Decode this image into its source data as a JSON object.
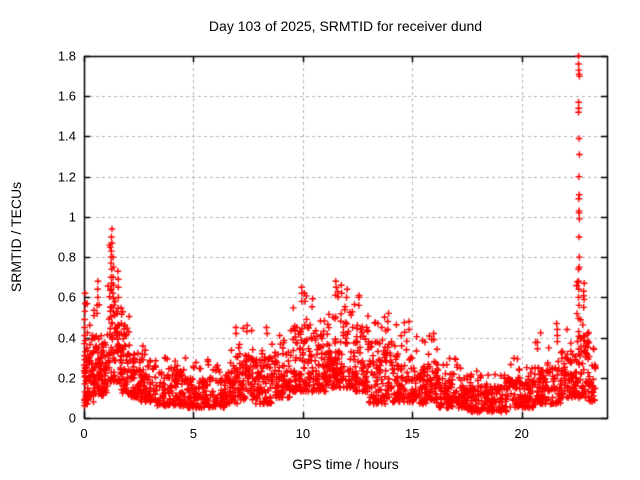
{
  "chart_data": {
    "type": "scatter",
    "title": "Day 103 of 2025, SRMTID for receiver dund",
    "xlabel": "GPS time / hours",
    "ylabel": "SRMTID / TECUs",
    "xlim": [
      0,
      23.9
    ],
    "ylim": [
      0,
      1.8
    ],
    "xticks": [
      {
        "v": 0,
        "label": "0"
      },
      {
        "v": 5,
        "label": "5"
      },
      {
        "v": 10,
        "label": "10"
      },
      {
        "v": 15,
        "label": "15"
      },
      {
        "v": 20,
        "label": "20"
      }
    ],
    "yticks": [
      {
        "v": 0.0,
        "label": "0"
      },
      {
        "v": 0.2,
        "label": "0.2"
      },
      {
        "v": 0.4,
        "label": "0.4"
      },
      {
        "v": 0.6,
        "label": "0.6"
      },
      {
        "v": 0.8,
        "label": "0.8"
      },
      {
        "v": 1.0,
        "label": "1"
      },
      {
        "v": 1.2,
        "label": "1.2"
      },
      {
        "v": 1.4,
        "label": "1.4"
      },
      {
        "v": 1.6,
        "label": "1.6"
      },
      {
        "v": 1.8,
        "label": "1.8"
      }
    ],
    "grid": true,
    "legend": "none",
    "marker": "plus",
    "marker_color": "#ff0000",
    "grid_color": "#b4b4b4",
    "axis_color": "#000000",
    "background": "#ffffff",
    "bands_format": [
      "x_start_hours",
      "x_end_hours",
      "n_points",
      "y_low",
      "y_high",
      "y_peak"
    ],
    "cloud_bands": [
      [
        0.0,
        0.15,
        30,
        0.06,
        0.35,
        0.57
      ],
      [
        0.15,
        0.45,
        40,
        0.08,
        0.38,
        0.55
      ],
      [
        0.45,
        0.8,
        55,
        0.12,
        0.45,
        0.68
      ],
      [
        0.8,
        1.1,
        40,
        0.1,
        0.4,
        0.52
      ],
      [
        1.1,
        1.5,
        60,
        0.18,
        0.6,
        0.88
      ],
      [
        1.5,
        1.7,
        28,
        0.15,
        0.55,
        0.73
      ],
      [
        1.7,
        2.1,
        55,
        0.12,
        0.45,
        0.58
      ],
      [
        2.1,
        2.5,
        45,
        0.1,
        0.3,
        0.42
      ],
      [
        2.5,
        3.3,
        85,
        0.08,
        0.26,
        0.37
      ],
      [
        3.3,
        4.6,
        120,
        0.06,
        0.24,
        0.32
      ],
      [
        4.6,
        6.5,
        170,
        0.05,
        0.2,
        0.3
      ],
      [
        6.5,
        7.1,
        60,
        0.07,
        0.26,
        0.38
      ],
      [
        7.1,
        7.8,
        70,
        0.09,
        0.32,
        0.46
      ],
      [
        7.8,
        8.6,
        80,
        0.07,
        0.32,
        0.46
      ],
      [
        8.6,
        9.4,
        80,
        0.1,
        0.3,
        0.42
      ],
      [
        9.4,
        10.3,
        95,
        0.13,
        0.45,
        0.66
      ],
      [
        10.3,
        11.1,
        85,
        0.13,
        0.42,
        0.6
      ],
      [
        11.1,
        12.3,
        130,
        0.15,
        0.5,
        0.67
      ],
      [
        12.3,
        13.0,
        75,
        0.13,
        0.45,
        0.62
      ],
      [
        13.0,
        14.1,
        110,
        0.07,
        0.38,
        0.54
      ],
      [
        14.1,
        15.1,
        100,
        0.08,
        0.32,
        0.48
      ],
      [
        15.1,
        16.2,
        105,
        0.07,
        0.28,
        0.42
      ],
      [
        16.2,
        17.4,
        115,
        0.05,
        0.2,
        0.3
      ],
      [
        17.4,
        19.3,
        175,
        0.03,
        0.16,
        0.24
      ],
      [
        19.3,
        20.6,
        120,
        0.05,
        0.2,
        0.31
      ],
      [
        20.6,
        21.8,
        110,
        0.07,
        0.26,
        0.45
      ],
      [
        21.8,
        22.5,
        70,
        0.1,
        0.35,
        0.52
      ],
      [
        22.5,
        23.1,
        75,
        0.1,
        0.45,
        0.68
      ],
      [
        23.1,
        23.4,
        24,
        0.08,
        0.28,
        0.36
      ]
    ],
    "spike_columns": [
      {
        "x": 0.04,
        "ys": [
          0.62,
          0.57,
          0.53,
          0.49,
          0.45,
          0.41,
          0.37,
          0.33,
          0.29,
          0.25,
          0.21,
          0.17,
          0.13
        ]
      },
      {
        "x": 0.62,
        "ys": [
          0.68,
          0.64,
          0.6,
          0.56,
          0.52
        ]
      },
      {
        "x": 1.26,
        "ys": [
          0.94,
          0.9,
          0.87,
          0.83,
          0.8,
          0.77,
          0.74,
          0.7,
          0.67,
          0.64
        ]
      },
      {
        "x": 1.33,
        "ys": [
          0.8,
          0.75,
          0.7,
          0.66,
          0.62
        ]
      },
      {
        "x": 1.56,
        "ys": [
          0.73,
          0.69,
          0.65,
          0.6
        ]
      },
      {
        "x": 6.93,
        "ys": [
          0.45,
          0.42
        ]
      },
      {
        "x": 7.45,
        "ys": [
          0.46,
          0.43
        ]
      },
      {
        "x": 8.35,
        "ys": [
          0.45,
          0.42
        ]
      },
      {
        "x": 9.95,
        "ys": [
          0.65,
          0.62,
          0.58
        ]
      },
      {
        "x": 10.08,
        "ys": [
          0.62,
          0.58
        ]
      },
      {
        "x": 11.5,
        "ys": [
          0.68,
          0.65,
          0.61
        ]
      },
      {
        "x": 11.78,
        "ys": [
          0.66,
          0.62
        ]
      },
      {
        "x": 12.02,
        "ys": [
          0.64,
          0.6
        ]
      },
      {
        "x": 12.55,
        "ys": [
          0.6,
          0.56
        ]
      },
      {
        "x": 13.9,
        "ys": [
          0.52,
          0.48,
          0.44
        ]
      },
      {
        "x": 14.85,
        "ys": [
          0.48,
          0.44
        ]
      },
      {
        "x": 16.0,
        "ys": [
          0.42,
          0.39
        ]
      },
      {
        "x": 21.62,
        "ys": [
          0.47,
          0.44,
          0.41,
          0.38
        ]
      },
      {
        "x": 22.62,
        "ys": [
          1.8,
          1.76,
          1.73,
          1.71,
          1.7,
          1.57,
          1.54,
          1.52,
          1.39,
          1.31,
          1.2,
          1.11,
          1.09,
          1.03,
          1.02,
          0.99,
          0.9,
          0.8,
          0.75,
          0.74,
          0.68,
          0.64,
          0.6,
          0.56
        ]
      },
      {
        "x": 22.85,
        "ys": [
          0.67,
          0.63,
          0.59,
          0.55
        ]
      }
    ]
  }
}
